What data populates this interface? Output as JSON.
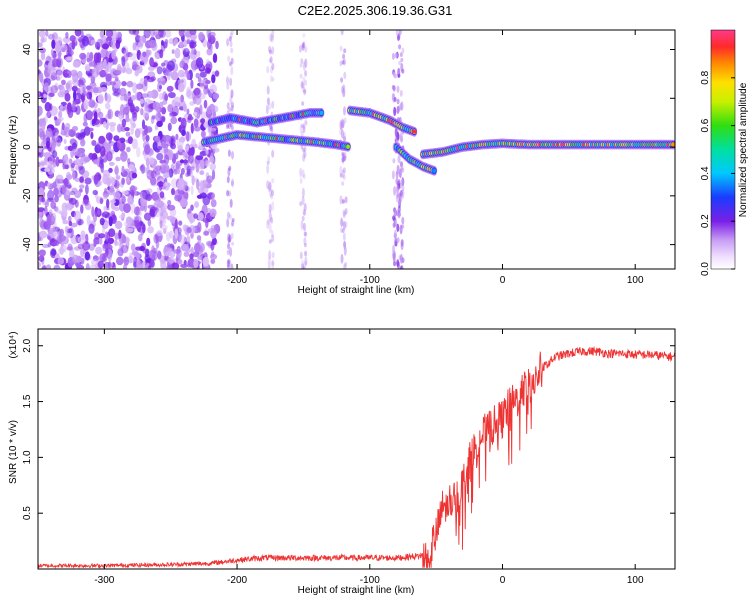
{
  "title": "C2E2.2025.306.19.36.G31",
  "chart_data": [
    {
      "type": "heatmap",
      "xlabel": "Height of straight line (km)",
      "ylabel": "Frequency (Hz)",
      "xlim": [
        -350,
        130
      ],
      "ylim": [
        -50,
        48
      ],
      "xticks": [
        -300,
        -200,
        -100,
        0,
        100
      ],
      "yticks": [
        -40,
        -20,
        0,
        20,
        40
      ],
      "xtick_labels": [
        "-300",
        "-200",
        "-100",
        "0",
        "100"
      ],
      "ytick_labels": [
        "-40",
        "-20",
        "0",
        "20",
        "40"
      ],
      "colorbar": {
        "label": "Normalized spectral amplitude",
        "range": [
          0,
          1
        ],
        "ticks": [
          0,
          0.2,
          0.4,
          0.6,
          0.8
        ],
        "tick_labels": [
          "0.0",
          "0.2",
          "0.4",
          "0.6",
          "0.8"
        ]
      },
      "noise_region_x": [
        -350,
        -215
      ],
      "tracks": [
        {
          "x": [
            -225,
            -200,
            -180,
            -160,
            -140,
            -125,
            -115
          ],
          "y": [
            2,
            5,
            4,
            3,
            2,
            1,
            0
          ],
          "amplitude": 0.45
        },
        {
          "x": [
            -220,
            -205,
            -185,
            -165,
            -145,
            -135
          ],
          "y": [
            10,
            12,
            10,
            12,
            14,
            14
          ],
          "amplitude": 0.35
        },
        {
          "x": [
            -115,
            -100,
            -85,
            -75,
            -65
          ],
          "y": [
            15,
            14,
            11,
            8,
            6
          ],
          "amplitude": 0.55
        },
        {
          "x": [
            -80,
            -70,
            -60,
            -50
          ],
          "y": [
            0,
            -5,
            -8,
            -10
          ],
          "amplitude": 0.5
        },
        {
          "x": [
            -60,
            -45,
            -30,
            -15,
            0,
            20,
            50,
            80,
            100,
            130
          ],
          "y": [
            -3,
            -2,
            0,
            1,
            1.5,
            1,
            1,
            1,
            1,
            1
          ],
          "amplitude": 0.6
        }
      ]
    },
    {
      "type": "line",
      "xlabel": "Height of straight line (km)",
      "ylabel": "SNR (10 * v/v)",
      "y_multiplier": "(x10⁴)",
      "xlim": [
        -350,
        130
      ],
      "ylim": [
        0,
        2.15
      ],
      "xticks": [
        -300,
        -200,
        -100,
        0,
        100
      ],
      "yticks": [
        0.5,
        1.0,
        1.5,
        2.0
      ],
      "xtick_labels": [
        "-300",
        "-200",
        "-100",
        "0",
        "100"
      ],
      "ytick_labels": [
        "0.5",
        "1.0",
        "1.5",
        "2.0"
      ],
      "color": "#ee3333",
      "series": [
        {
          "x": [
            -350,
            -300,
            -250,
            -220,
            -200,
            -180,
            -150,
            -120,
            -100,
            -80,
            -60,
            -55,
            -50,
            -45,
            -40,
            -35,
            -30,
            -25,
            -20,
            -15,
            -10,
            -5,
            0,
            5,
            10,
            15,
            20,
            25,
            30,
            35,
            40,
            50,
            60,
            70,
            80,
            90,
            100,
            110,
            120,
            130
          ],
          "y": [
            0.03,
            0.03,
            0.04,
            0.05,
            0.08,
            0.1,
            0.1,
            0.1,
            0.1,
            0.1,
            0.12,
            0.18,
            0.3,
            0.55,
            0.6,
            0.65,
            0.75,
            0.95,
            1.1,
            1.2,
            1.25,
            1.3,
            1.35,
            1.45,
            1.5,
            1.6,
            1.65,
            1.7,
            1.8,
            1.85,
            1.9,
            1.93,
            1.95,
            1.95,
            1.93,
            1.93,
            1.92,
            1.92,
            1.91,
            1.9
          ]
        }
      ]
    }
  ]
}
